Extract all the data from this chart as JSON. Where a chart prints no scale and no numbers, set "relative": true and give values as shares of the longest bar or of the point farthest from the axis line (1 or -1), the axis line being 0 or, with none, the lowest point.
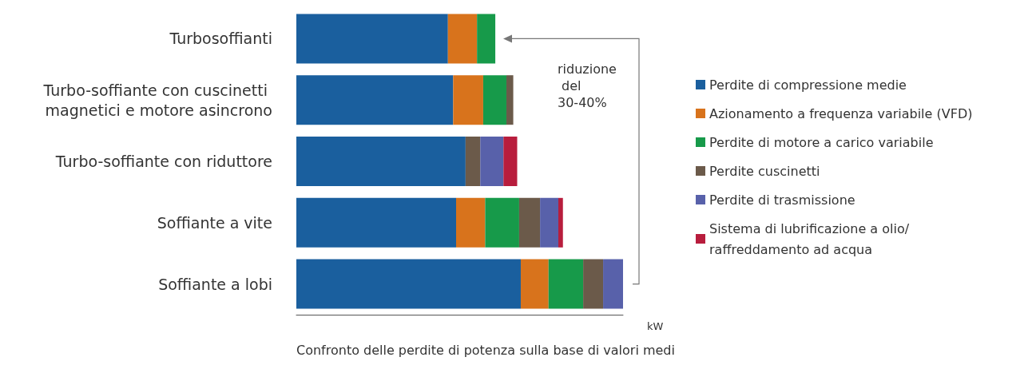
{
  "chart_data": {
    "type": "bar",
    "orientation": "horizontal",
    "stacked": true,
    "relative": true,
    "xlabel": "kW",
    "categories": [
      "Turbosoffianti",
      "Turbo-soffiante con cuscinetti magnetici e motore asincrono",
      "Turbo-soffiante con riduttore",
      "Soffiante a vite",
      "Soffiante a lobi"
    ],
    "series": [
      {
        "name": "Perdite di compressione medie",
        "color": "#1a5f9e",
        "values": [
          0.464,
          0.48,
          0.518,
          0.489,
          0.687
        ]
      },
      {
        "name": "Azionamento a frequenza variabile (VFD)",
        "color": "#d8731c",
        "values": [
          0.089,
          0.092,
          null,
          0.089,
          0.085
        ]
      },
      {
        "name": "Perdite di motore a carico variabile",
        "color": "#179a4a",
        "values": [
          0.056,
          0.071,
          null,
          0.104,
          0.106
        ]
      },
      {
        "name": "Perdite cuscinetti",
        "color": "#6b5a4a",
        "values": [
          null,
          0.021,
          0.045,
          0.064,
          0.061
        ]
      },
      {
        "name": "Perdite di trasmissione",
        "color": "#5861aa",
        "values": [
          null,
          null,
          0.071,
          0.056,
          0.061
        ]
      },
      {
        "name": "Sistema di lubrificazione a olio/raffreddamento ad acqua",
        "color": "#b81d3d",
        "values": [
          null,
          null,
          0.042,
          0.014,
          null
        ]
      }
    ],
    "legend": "right",
    "annotations": [
      "riduzione del 30-40%",
      "Confronto delle perdite di potenza sulla base di valori medi"
    ]
  }
}
